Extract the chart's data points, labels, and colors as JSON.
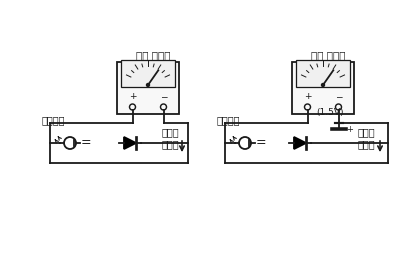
{
  "bg_color": "#ffffff",
  "line_color": "#1a1a1a",
  "text_color": "#1a1a1a",
  "label_meter1": "저항 레인지",
  "label_meter2": "저항 레인지",
  "label_emit1": "발광한다",
  "label_emit2": "발광한다",
  "label_current1": "전류가\n흐른다",
  "label_current2": "전류가\n흐른다",
  "label_battery": "(1.5V)",
  "figsize": [
    3.96,
    2.63
  ],
  "dpi": 100
}
